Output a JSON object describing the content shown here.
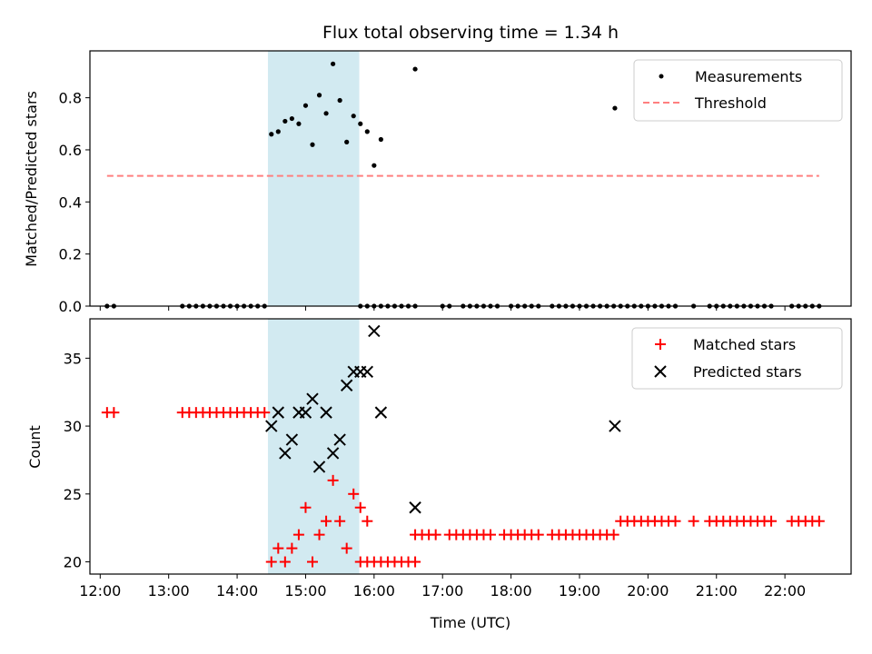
{
  "chart_data": [
    {
      "type": "scatter",
      "title": "Flux total observing time = 1.34 h",
      "ylabel": "Matched/Predicted stars",
      "xlabel": "",
      "xlim": [
        "11:51",
        "22:58"
      ],
      "ylim": [
        0,
        0.98
      ],
      "yticks": [
        0.0,
        0.2,
        0.4,
        0.6,
        0.8
      ],
      "ytick_labels": [
        "0.0",
        "0.2",
        "0.4",
        "0.6",
        "0.8"
      ],
      "shaded_interval": [
        "14:27",
        "15:47"
      ],
      "shade_color": "#add8e6",
      "legend_placement": "top-right",
      "series": [
        {
          "name": "Measurements",
          "kind": "scatter",
          "color": "#000000",
          "points": [
            [
              "12:06",
              0
            ],
            [
              "12:12",
              0
            ],
            [
              "13:12",
              0
            ],
            [
              "13:18",
              0
            ],
            [
              "13:24",
              0
            ],
            [
              "13:30",
              0
            ],
            [
              "13:36",
              0
            ],
            [
              "13:42",
              0
            ],
            [
              "13:48",
              0
            ],
            [
              "13:54",
              0
            ],
            [
              "14:00",
              0
            ],
            [
              "14:06",
              0
            ],
            [
              "14:12",
              0
            ],
            [
              "14:18",
              0
            ],
            [
              "14:24",
              0
            ],
            [
              "14:30",
              0.66
            ],
            [
              "14:36",
              0.67
            ],
            [
              "14:42",
              0.71
            ],
            [
              "14:48",
              0.72
            ],
            [
              "14:54",
              0.7
            ],
            [
              "15:00",
              0.77
            ],
            [
              "15:06",
              0.62
            ],
            [
              "15:12",
              0.81
            ],
            [
              "15:18",
              0.74
            ],
            [
              "15:24",
              0.93
            ],
            [
              "15:30",
              0.79
            ],
            [
              "15:36",
              0.63
            ],
            [
              "15:42",
              0.73
            ],
            [
              "15:48",
              0.7
            ],
            [
              "15:54",
              0.67
            ],
            [
              "16:00",
              0.54
            ],
            [
              "16:06",
              0.64
            ],
            [
              "15:48",
              0
            ],
            [
              "15:54",
              0
            ],
            [
              "16:00",
              0
            ],
            [
              "16:06",
              0
            ],
            [
              "16:12",
              0
            ],
            [
              "16:18",
              0
            ],
            [
              "16:24",
              0
            ],
            [
              "16:30",
              0
            ],
            [
              "16:36",
              0
            ],
            [
              "16:36",
              0.91
            ],
            [
              "17:00",
              0
            ],
            [
              "17:06",
              0
            ],
            [
              "17:18",
              0
            ],
            [
              "17:24",
              0
            ],
            [
              "17:30",
              0
            ],
            [
              "17:36",
              0
            ],
            [
              "17:42",
              0
            ],
            [
              "17:48",
              0
            ],
            [
              "18:00",
              0
            ],
            [
              "18:06",
              0
            ],
            [
              "18:12",
              0
            ],
            [
              "18:18",
              0
            ],
            [
              "18:24",
              0
            ],
            [
              "18:36",
              0
            ],
            [
              "18:42",
              0
            ],
            [
              "18:48",
              0
            ],
            [
              "18:54",
              0
            ],
            [
              "19:00",
              0
            ],
            [
              "19:06",
              0
            ],
            [
              "19:12",
              0
            ],
            [
              "19:18",
              0
            ],
            [
              "19:24",
              0
            ],
            [
              "19:30",
              0
            ],
            [
              "19:31",
              0.76
            ],
            [
              "19:36",
              0
            ],
            [
              "19:42",
              0
            ],
            [
              "19:48",
              0
            ],
            [
              "19:54",
              0
            ],
            [
              "20:00",
              0
            ],
            [
              "20:06",
              0
            ],
            [
              "20:12",
              0
            ],
            [
              "20:18",
              0
            ],
            [
              "20:24",
              0
            ],
            [
              "20:40",
              0
            ],
            [
              "20:54",
              0
            ],
            [
              "21:00",
              0
            ],
            [
              "21:06",
              0
            ],
            [
              "21:12",
              0
            ],
            [
              "21:18",
              0
            ],
            [
              "21:24",
              0
            ],
            [
              "21:30",
              0
            ],
            [
              "21:36",
              0
            ],
            [
              "21:42",
              0
            ],
            [
              "21:48",
              0
            ],
            [
              "22:06",
              0
            ],
            [
              "22:12",
              0
            ],
            [
              "22:18",
              0
            ],
            [
              "22:24",
              0
            ],
            [
              "22:30",
              0
            ]
          ]
        },
        {
          "name": "Threshold",
          "kind": "dashed-line",
          "color": "#ff7f7f",
          "points": [
            [
              "12:06",
              0.5
            ],
            [
              "22:30",
              0.5
            ]
          ]
        }
      ]
    },
    {
      "type": "scatter",
      "title": "",
      "ylabel": "Count",
      "xlabel": "Time (UTC)",
      "xlim": [
        "11:51",
        "22:58"
      ],
      "ylim": [
        19.1,
        37.9
      ],
      "xticks": [
        "12:00",
        "13:00",
        "14:00",
        "15:00",
        "16:00",
        "17:00",
        "18:00",
        "19:00",
        "20:00",
        "21:00",
        "22:00"
      ],
      "yticks": [
        20,
        25,
        30,
        35
      ],
      "ytick_labels": [
        "20",
        "25",
        "30",
        "35"
      ],
      "shaded_interval": [
        "14:27",
        "15:47"
      ],
      "shade_color": "#add8e6",
      "legend_placement": "top-right",
      "series": [
        {
          "name": "Matched stars",
          "kind": "plus",
          "color": "#ff0000",
          "points": [
            [
              "12:06",
              31
            ],
            [
              "12:12",
              31
            ],
            [
              "13:12",
              31
            ],
            [
              "13:18",
              31
            ],
            [
              "13:24",
              31
            ],
            [
              "13:30",
              31
            ],
            [
              "13:36",
              31
            ],
            [
              "13:42",
              31
            ],
            [
              "13:48",
              31
            ],
            [
              "13:54",
              31
            ],
            [
              "14:00",
              31
            ],
            [
              "14:06",
              31
            ],
            [
              "14:12",
              31
            ],
            [
              "14:18",
              31
            ],
            [
              "14:24",
              31
            ],
            [
              "14:30",
              20
            ],
            [
              "14:36",
              21
            ],
            [
              "14:42",
              20
            ],
            [
              "14:48",
              21
            ],
            [
              "14:54",
              22
            ],
            [
              "15:00",
              24
            ],
            [
              "15:06",
              20
            ],
            [
              "15:12",
              22
            ],
            [
              "15:18",
              23
            ],
            [
              "15:24",
              26
            ],
            [
              "15:30",
              23
            ],
            [
              "15:36",
              21
            ],
            [
              "15:42",
              25
            ],
            [
              "15:48",
              24
            ],
            [
              "15:54",
              23
            ],
            [
              "15:48",
              20
            ],
            [
              "15:54",
              20
            ],
            [
              "16:00",
              20
            ],
            [
              "16:06",
              20
            ],
            [
              "16:12",
              20
            ],
            [
              "16:18",
              20
            ],
            [
              "16:24",
              20
            ],
            [
              "16:30",
              20
            ],
            [
              "16:36",
              20
            ],
            [
              "16:36",
              22
            ],
            [
              "16:42",
              22
            ],
            [
              "16:48",
              22
            ],
            [
              "16:54",
              22
            ],
            [
              "17:06",
              22
            ],
            [
              "17:12",
              22
            ],
            [
              "17:18",
              22
            ],
            [
              "17:24",
              22
            ],
            [
              "17:30",
              22
            ],
            [
              "17:36",
              22
            ],
            [
              "17:42",
              22
            ],
            [
              "17:54",
              22
            ],
            [
              "18:00",
              22
            ],
            [
              "18:06",
              22
            ],
            [
              "18:12",
              22
            ],
            [
              "18:18",
              22
            ],
            [
              "18:24",
              22
            ],
            [
              "18:36",
              22
            ],
            [
              "18:42",
              22
            ],
            [
              "18:48",
              22
            ],
            [
              "18:54",
              22
            ],
            [
              "19:00",
              22
            ],
            [
              "19:06",
              22
            ],
            [
              "19:12",
              22
            ],
            [
              "19:18",
              22
            ],
            [
              "19:24",
              22
            ],
            [
              "19:30",
              22
            ],
            [
              "19:36",
              23
            ],
            [
              "19:42",
              23
            ],
            [
              "19:48",
              23
            ],
            [
              "19:54",
              23
            ],
            [
              "20:00",
              23
            ],
            [
              "20:06",
              23
            ],
            [
              "20:12",
              23
            ],
            [
              "20:18",
              23
            ],
            [
              "20:24",
              23
            ],
            [
              "20:40",
              23
            ],
            [
              "20:54",
              23
            ],
            [
              "21:00",
              23
            ],
            [
              "21:06",
              23
            ],
            [
              "21:12",
              23
            ],
            [
              "21:18",
              23
            ],
            [
              "21:24",
              23
            ],
            [
              "21:30",
              23
            ],
            [
              "21:36",
              23
            ],
            [
              "21:42",
              23
            ],
            [
              "21:48",
              23
            ],
            [
              "22:06",
              23
            ],
            [
              "22:12",
              23
            ],
            [
              "22:18",
              23
            ],
            [
              "22:24",
              23
            ],
            [
              "22:30",
              23
            ]
          ]
        },
        {
          "name": "Predicted stars",
          "kind": "x",
          "color": "#000000",
          "points": [
            [
              "14:30",
              30
            ],
            [
              "14:36",
              31
            ],
            [
              "14:42",
              28
            ],
            [
              "14:48",
              29
            ],
            [
              "14:54",
              31
            ],
            [
              "15:00",
              31
            ],
            [
              "15:06",
              32
            ],
            [
              "15:12",
              27
            ],
            [
              "15:18",
              31
            ],
            [
              "15:24",
              28
            ],
            [
              "15:30",
              29
            ],
            [
              "15:36",
              33
            ],
            [
              "15:42",
              34
            ],
            [
              "15:48",
              34
            ],
            [
              "15:54",
              34
            ],
            [
              "16:00",
              37
            ],
            [
              "16:06",
              31
            ],
            [
              "16:36",
              24
            ],
            [
              "19:31",
              30
            ]
          ]
        }
      ]
    }
  ]
}
